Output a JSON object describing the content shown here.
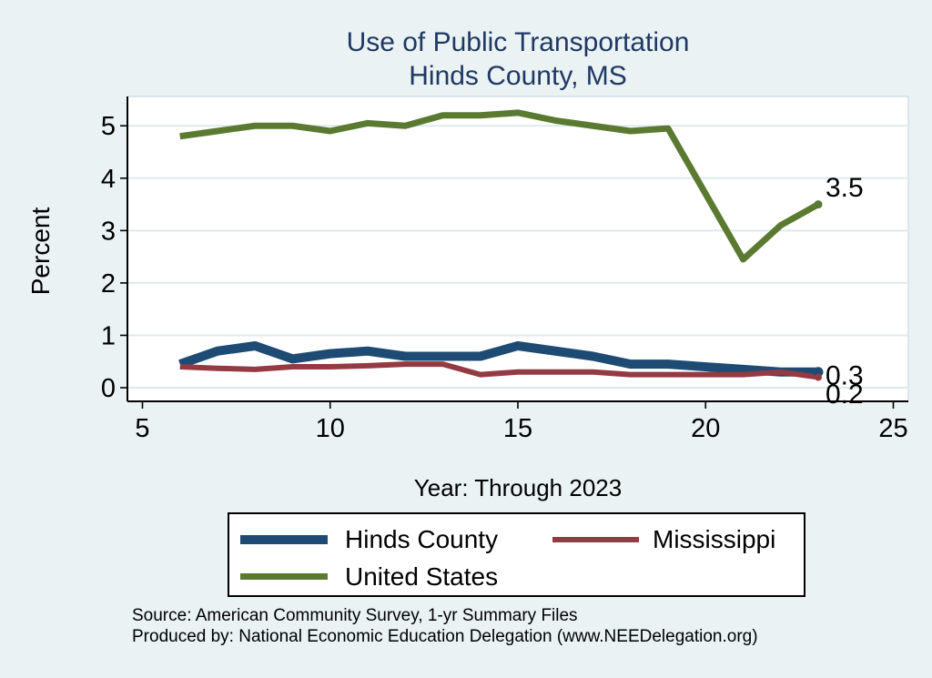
{
  "title": {
    "line1": "Use of Public Transportation",
    "line2": "Hinds County, MS"
  },
  "axes": {
    "y_label": "Percent",
    "x_label": "Year: Through 2023"
  },
  "chart_data": {
    "type": "line",
    "title": "Use of Public Transportation Hinds County, MS",
    "xlabel": "Year: Through 2023",
    "ylabel": "Percent",
    "x": [
      6,
      7,
      8,
      9,
      10,
      11,
      12,
      13,
      14,
      15,
      16,
      17,
      18,
      19,
      21,
      22,
      23
    ],
    "series": [
      {
        "name": "Hinds County",
        "color": "#1d4b73",
        "line_width": 10,
        "values": [
          0.45,
          0.7,
          0.8,
          0.55,
          0.65,
          0.7,
          0.6,
          0.6,
          0.6,
          0.8,
          0.7,
          0.6,
          0.45,
          0.45,
          0.35,
          0.3,
          0.3
        ],
        "end_label": "0.3",
        "end_label_dy": 3,
        "end_dot_radius": 5.5
      },
      {
        "name": "Mississippi",
        "color": "#943a42",
        "line_width": 6,
        "values": [
          0.4,
          0.37,
          0.35,
          0.4,
          0.4,
          0.42,
          0.45,
          0.45,
          0.25,
          0.3,
          0.3,
          0.3,
          0.25,
          0.25,
          0.25,
          0.3,
          0.2
        ],
        "end_label": "0.2",
        "end_label_dy": 18,
        "end_dot_radius": 4
      },
      {
        "name": "United States",
        "color": "#5a7a31",
        "line_width": 7,
        "values": [
          4.8,
          4.9,
          5.0,
          5.0,
          4.9,
          5.05,
          5.0,
          5.2,
          5.2,
          5.25,
          5.1,
          5.0,
          4.9,
          4.95,
          2.45,
          3.1,
          3.5
        ],
        "end_label": "3.5",
        "end_label_dy": -19,
        "end_dot_radius": 4.5
      }
    ],
    "xticks": [
      5,
      10,
      15,
      20,
      25
    ],
    "yticks": [
      0,
      1,
      2,
      3,
      4,
      5
    ],
    "xlim": [
      4.6,
      25.4
    ],
    "ylim": [
      -0.26,
      5.56
    ],
    "grid": "horizontal-only",
    "legend_position": "bottom"
  },
  "footer": {
    "line1": "Source: American Community Survey, 1-yr Summary Files",
    "line2": "Produced by: National Economic Education Delegation (www.NEEDelegation.org)"
  },
  "colors": {
    "background": "#eaf2f3",
    "title": "#1f3864",
    "grid": "#dfeaee",
    "axis": "#000000",
    "plot_background": "#ffffff"
  }
}
